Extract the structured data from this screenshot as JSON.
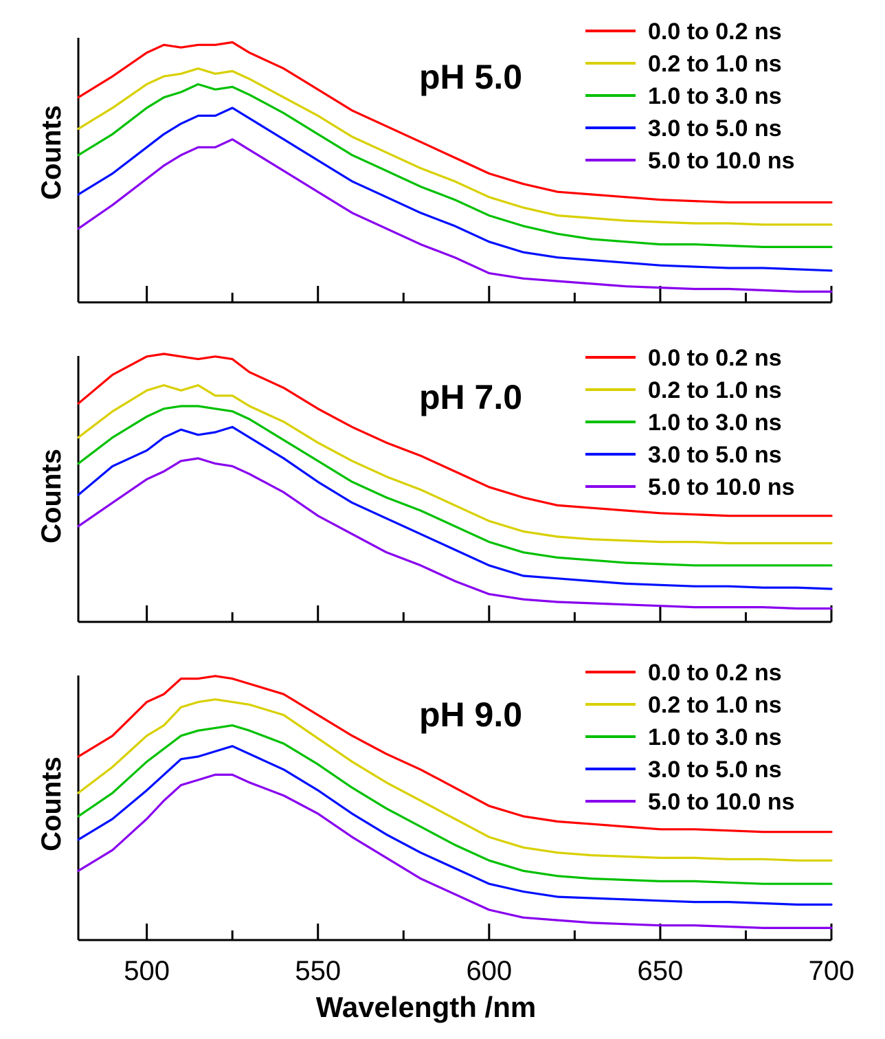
{
  "chart_data": [
    {
      "type": "line",
      "title": "pH 5.0",
      "ylabel": "Counts",
      "xlim": [
        480,
        700
      ],
      "x_ticks": [
        500,
        525,
        550,
        575,
        600,
        625,
        650,
        675,
        700
      ],
      "legend_position": "top-right",
      "x": [
        480,
        490,
        500,
        505,
        510,
        515,
        520,
        525,
        530,
        540,
        550,
        560,
        570,
        580,
        590,
        600,
        610,
        620,
        630,
        640,
        650,
        660,
        670,
        680,
        690,
        700
      ],
      "series": [
        {
          "name": "0.0 to 0.2 ns",
          "color": "#ff0000",
          "values": [
            0.76,
            0.84,
            0.93,
            0.96,
            0.95,
            0.96,
            0.96,
            0.97,
            0.93,
            0.87,
            0.79,
            0.71,
            0.65,
            0.59,
            0.53,
            0.47,
            0.43,
            0.4,
            0.39,
            0.38,
            0.37,
            0.365,
            0.36,
            0.36,
            0.36,
            0.36
          ]
        },
        {
          "name": "0.2 to 1.0 ns",
          "color": "#d8d000",
          "values": [
            0.64,
            0.72,
            0.81,
            0.84,
            0.85,
            0.87,
            0.85,
            0.86,
            0.83,
            0.76,
            0.69,
            0.61,
            0.55,
            0.49,
            0.44,
            0.38,
            0.34,
            0.31,
            0.3,
            0.29,
            0.285,
            0.28,
            0.28,
            0.275,
            0.275,
            0.275
          ]
        },
        {
          "name": "1.0 to 3.0 ns",
          "color": "#00c000",
          "values": [
            0.54,
            0.62,
            0.72,
            0.76,
            0.78,
            0.81,
            0.79,
            0.8,
            0.77,
            0.7,
            0.62,
            0.54,
            0.48,
            0.42,
            0.37,
            0.31,
            0.27,
            0.24,
            0.22,
            0.21,
            0.2,
            0.2,
            0.195,
            0.19,
            0.19,
            0.19
          ]
        },
        {
          "name": "3.0 to 5.0 ns",
          "color": "#0010ff",
          "values": [
            0.39,
            0.47,
            0.57,
            0.62,
            0.66,
            0.69,
            0.69,
            0.72,
            0.68,
            0.6,
            0.52,
            0.44,
            0.38,
            0.32,
            0.27,
            0.21,
            0.17,
            0.15,
            0.14,
            0.13,
            0.12,
            0.115,
            0.11,
            0.11,
            0.105,
            0.1
          ]
        },
        {
          "name": "5.0 to 10.0 ns",
          "color": "#8800ee",
          "values": [
            0.26,
            0.35,
            0.45,
            0.5,
            0.54,
            0.57,
            0.57,
            0.6,
            0.56,
            0.48,
            0.4,
            0.32,
            0.26,
            0.2,
            0.15,
            0.09,
            0.07,
            0.06,
            0.05,
            0.04,
            0.035,
            0.03,
            0.03,
            0.025,
            0.02,
            0.02
          ]
        }
      ]
    },
    {
      "type": "line",
      "title": "pH 7.0",
      "ylabel": "Counts",
      "xlim": [
        480,
        700
      ],
      "x_ticks": [
        500,
        525,
        550,
        575,
        600,
        625,
        650,
        675,
        700
      ],
      "legend_position": "top-right",
      "x": [
        480,
        490,
        500,
        505,
        510,
        515,
        520,
        525,
        530,
        540,
        550,
        560,
        570,
        580,
        590,
        600,
        610,
        620,
        630,
        640,
        650,
        660,
        670,
        680,
        690,
        700
      ],
      "series": [
        {
          "name": "0.0 to 0.2 ns",
          "color": "#ff0000",
          "values": [
            0.81,
            0.92,
            0.99,
            1.0,
            0.99,
            0.98,
            0.99,
            0.98,
            0.93,
            0.87,
            0.79,
            0.72,
            0.66,
            0.61,
            0.55,
            0.49,
            0.45,
            0.42,
            0.41,
            0.4,
            0.39,
            0.385,
            0.38,
            0.38,
            0.38,
            0.38
          ]
        },
        {
          "name": "0.2 to 1.0 ns",
          "color": "#d8d000",
          "values": [
            0.68,
            0.78,
            0.86,
            0.88,
            0.86,
            0.88,
            0.84,
            0.84,
            0.8,
            0.74,
            0.66,
            0.59,
            0.53,
            0.48,
            0.42,
            0.36,
            0.32,
            0.3,
            0.29,
            0.285,
            0.28,
            0.28,
            0.275,
            0.275,
            0.275,
            0.275
          ]
        },
        {
          "name": "1.0 to 3.0 ns",
          "color": "#00c000",
          "values": [
            0.58,
            0.68,
            0.76,
            0.79,
            0.8,
            0.8,
            0.79,
            0.78,
            0.75,
            0.67,
            0.59,
            0.51,
            0.45,
            0.4,
            0.34,
            0.28,
            0.24,
            0.22,
            0.21,
            0.2,
            0.195,
            0.19,
            0.19,
            0.19,
            0.19,
            0.19
          ]
        },
        {
          "name": "3.0 to 5.0 ns",
          "color": "#0010ff",
          "values": [
            0.46,
            0.57,
            0.63,
            0.68,
            0.71,
            0.69,
            0.7,
            0.72,
            0.68,
            0.6,
            0.51,
            0.43,
            0.37,
            0.31,
            0.25,
            0.19,
            0.15,
            0.14,
            0.13,
            0.12,
            0.115,
            0.11,
            0.11,
            0.105,
            0.105,
            0.1
          ]
        },
        {
          "name": "5.0 to 10.0 ns",
          "color": "#8800ee",
          "values": [
            0.34,
            0.43,
            0.52,
            0.55,
            0.59,
            0.6,
            0.58,
            0.57,
            0.54,
            0.47,
            0.38,
            0.31,
            0.24,
            0.19,
            0.13,
            0.08,
            0.06,
            0.05,
            0.045,
            0.04,
            0.035,
            0.03,
            0.03,
            0.03,
            0.025,
            0.025
          ]
        }
      ]
    },
    {
      "type": "line",
      "title": "pH 9.0",
      "ylabel": "Counts",
      "xlabel": "Wavelength /nm",
      "xlim": [
        480,
        700
      ],
      "x_ticks": [
        500,
        525,
        550,
        575,
        600,
        625,
        650,
        675,
        700
      ],
      "x_tick_labels": [
        "500",
        "550",
        "600",
        "650",
        "700"
      ],
      "legend_position": "top-right",
      "x": [
        480,
        490,
        500,
        505,
        510,
        515,
        520,
        525,
        530,
        540,
        550,
        560,
        570,
        580,
        590,
        600,
        610,
        620,
        630,
        640,
        650,
        660,
        670,
        680,
        690,
        700
      ],
      "series": [
        {
          "name": "0.0 to 0.2 ns",
          "color": "#ff0000",
          "values": [
            0.68,
            0.76,
            0.89,
            0.92,
            0.98,
            0.98,
            0.99,
            0.98,
            0.96,
            0.92,
            0.84,
            0.76,
            0.69,
            0.63,
            0.56,
            0.49,
            0.45,
            0.43,
            0.42,
            0.41,
            0.4,
            0.4,
            0.395,
            0.39,
            0.39,
            0.39
          ]
        },
        {
          "name": "0.2 to 1.0 ns",
          "color": "#d8d000",
          "values": [
            0.54,
            0.64,
            0.76,
            0.8,
            0.87,
            0.89,
            0.9,
            0.89,
            0.88,
            0.84,
            0.75,
            0.66,
            0.58,
            0.51,
            0.44,
            0.37,
            0.33,
            0.31,
            0.3,
            0.295,
            0.29,
            0.29,
            0.285,
            0.285,
            0.28,
            0.28
          ]
        },
        {
          "name": "1.0 to 3.0 ns",
          "color": "#00c000",
          "values": [
            0.45,
            0.54,
            0.66,
            0.71,
            0.76,
            0.78,
            0.79,
            0.8,
            0.78,
            0.73,
            0.65,
            0.56,
            0.48,
            0.41,
            0.34,
            0.28,
            0.24,
            0.22,
            0.21,
            0.205,
            0.2,
            0.2,
            0.195,
            0.19,
            0.19,
            0.19
          ]
        },
        {
          "name": "3.0 to 5.0 ns",
          "color": "#0010ff",
          "values": [
            0.36,
            0.44,
            0.55,
            0.61,
            0.67,
            0.68,
            0.7,
            0.72,
            0.69,
            0.63,
            0.55,
            0.46,
            0.38,
            0.31,
            0.25,
            0.19,
            0.16,
            0.14,
            0.135,
            0.13,
            0.125,
            0.12,
            0.12,
            0.115,
            0.11,
            0.11
          ]
        },
        {
          "name": "5.0 to 10.0 ns",
          "color": "#8800ee",
          "values": [
            0.24,
            0.32,
            0.44,
            0.51,
            0.57,
            0.59,
            0.61,
            0.61,
            0.58,
            0.53,
            0.46,
            0.37,
            0.29,
            0.21,
            0.15,
            0.09,
            0.06,
            0.05,
            0.04,
            0.035,
            0.03,
            0.03,
            0.025,
            0.02,
            0.02,
            0.02
          ]
        }
      ]
    }
  ]
}
